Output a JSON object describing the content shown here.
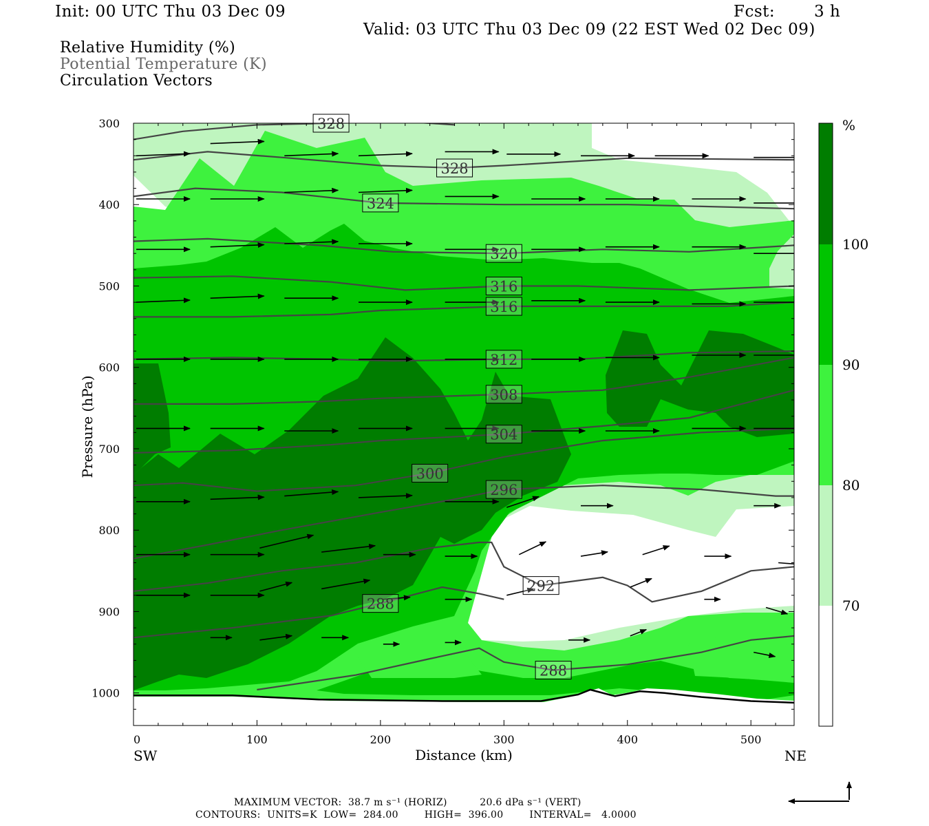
{
  "header": {
    "init": "Init: 00 UTC Thu 03 Dec 09",
    "fcst_label": "Fcst:",
    "fcst_value": "3 h",
    "valid": "Valid: 03 UTC Thu 03 Dec 09 (22 EST Wed 02 Dec 09)"
  },
  "fields": [
    "Relative Humidity (%)",
    "Potential Temperature (K)",
    "Circulation Vectors"
  ],
  "colors": {
    "rh_70_80": "#bff5bf",
    "rh_80_90": "#3ef23e",
    "rh_90_100": "#00c400",
    "rh_100": "#007d00",
    "theta_contour": "#444444",
    "theta_label": "#333333",
    "vector": "#000000",
    "legend_gray": "#666666"
  },
  "colorbar": {
    "unit": "%",
    "labels": [
      "100",
      "90",
      "80",
      "70"
    ]
  },
  "footer": {
    "line1": "MAXIMUM VECTOR:  38.7 m s⁻¹ (HORIZ)          20.6 dPa s⁻¹ (VERT)",
    "line2": "CONTOURS:  UNITS=K  LOW=  284.00        HIGH=  396.00        INTERVAL=   4.0000"
  },
  "chart_data": {
    "type": "heatmap",
    "title": "",
    "xlabel": "Distance (km)",
    "ylabel": "Pressure (hPa)",
    "xlim": [
      0,
      535
    ],
    "ylim": [
      1040,
      300
    ],
    "x_ticks": [
      "0",
      "100",
      "200",
      "300",
      "400",
      "500"
    ],
    "y_ticks": [
      "300",
      "400",
      "500",
      "600",
      "700",
      "800",
      "900",
      "1000"
    ],
    "x_end_labels": {
      "left": "SW",
      "right": "NE"
    },
    "rh_levels": [
      70,
      80,
      90,
      100
    ],
    "theta_contours": [
      {
        "value": 328,
        "label_text": "328",
        "points": [
          [
            0,
            320
          ],
          [
            40,
            310
          ],
          [
            100,
            302
          ],
          [
            160,
            300
          ],
          [
            220,
            298
          ],
          [
            260,
            302
          ]
        ]
      },
      {
        "value": 328,
        "label_text": "328",
        "points": [
          [
            0,
            345
          ],
          [
            60,
            335
          ],
          [
            120,
            342
          ],
          [
            200,
            352
          ],
          [
            260,
            355
          ],
          [
            300,
            352
          ],
          [
            400,
            343
          ],
          [
            535,
            345
          ]
        ]
      },
      {
        "value": 324,
        "label_text": "324",
        "points": [
          [
            0,
            390
          ],
          [
            50,
            380
          ],
          [
            120,
            385
          ],
          [
            200,
            398
          ],
          [
            300,
            400
          ],
          [
            400,
            400
          ],
          [
            535,
            405
          ]
        ]
      },
      {
        "value": 320,
        "label_text": "320",
        "points": [
          [
            0,
            445
          ],
          [
            60,
            442
          ],
          [
            150,
            450
          ],
          [
            210,
            458
          ],
          [
            300,
            460
          ],
          [
            380,
            455
          ],
          [
            450,
            458
          ],
          [
            535,
            450
          ]
        ]
      },
      {
        "value": 316,
        "label_text": "316",
        "points": [
          [
            0,
            490
          ],
          [
            80,
            488
          ],
          [
            160,
            495
          ],
          [
            220,
            505
          ],
          [
            300,
            500
          ],
          [
            360,
            500
          ],
          [
            450,
            505
          ],
          [
            535,
            500
          ]
        ]
      },
      {
        "value": 316,
        "label_text": "316",
        "points": [
          [
            0,
            538
          ],
          [
            80,
            538
          ],
          [
            160,
            535
          ],
          [
            200,
            530
          ],
          [
            300,
            525
          ],
          [
            400,
            525
          ],
          [
            480,
            525
          ],
          [
            535,
            520
          ]
        ]
      },
      {
        "value": 312,
        "label_text": "312",
        "points": [
          [
            0,
            590
          ],
          [
            80,
            588
          ],
          [
            160,
            590
          ],
          [
            210,
            592
          ],
          [
            300,
            590
          ],
          [
            360,
            590
          ],
          [
            450,
            582
          ],
          [
            535,
            580
          ]
        ]
      },
      {
        "value": 308,
        "label_text": "308",
        "points": [
          [
            0,
            645
          ],
          [
            80,
            645
          ],
          [
            150,
            642
          ],
          [
            200,
            638
          ],
          [
            300,
            633
          ],
          [
            380,
            628
          ],
          [
            450,
            612
          ],
          [
            535,
            588
          ]
        ]
      },
      {
        "value": 304,
        "label_text": "304",
        "points": [
          [
            0,
            705
          ],
          [
            80,
            702
          ],
          [
            160,
            695
          ],
          [
            200,
            690
          ],
          [
            300,
            682
          ],
          [
            380,
            672
          ],
          [
            450,
            662
          ],
          [
            535,
            628
          ]
        ]
      },
      {
        "value": 300,
        "label_text": "300",
        "points": [
          [
            0,
            745
          ],
          [
            40,
            742
          ],
          [
            100,
            752
          ],
          [
            180,
            745
          ],
          [
            240,
            730
          ],
          [
            300,
            710
          ],
          [
            380,
            690
          ],
          [
            460,
            680
          ],
          [
            535,
            675
          ]
        ]
      },
      {
        "value": 296,
        "label_text": "296",
        "points": [
          [
            0,
            835
          ],
          [
            60,
            818
          ],
          [
            120,
            800
          ],
          [
            200,
            778
          ],
          [
            260,
            762
          ],
          [
            300,
            750
          ],
          [
            380,
            745
          ],
          [
            460,
            750
          ],
          [
            520,
            758
          ],
          [
            535,
            758
          ]
        ]
      },
      {
        "value": 292,
        "label_text": "292",
        "points": [
          [
            0,
            875
          ],
          [
            60,
            865
          ],
          [
            120,
            850
          ],
          [
            180,
            840
          ],
          [
            240,
            822
          ],
          [
            280,
            815
          ],
          [
            290,
            815
          ],
          [
            300,
            845
          ],
          [
            330,
            868
          ],
          [
            360,
            862
          ],
          [
            380,
            858
          ],
          [
            400,
            868
          ],
          [
            420,
            888
          ],
          [
            460,
            875
          ],
          [
            500,
            850
          ],
          [
            535,
            845
          ]
        ]
      },
      {
        "value": 288,
        "label_text": "288",
        "points": [
          [
            0,
            932
          ],
          [
            80,
            920
          ],
          [
            160,
            905
          ],
          [
            200,
            890
          ],
          [
            250,
            870
          ],
          [
            280,
            878
          ],
          [
            300,
            885
          ]
        ]
      },
      {
        "value": 288,
        "label_text": "288",
        "points": [
          [
            100,
            996
          ],
          [
            180,
            978
          ],
          [
            240,
            958
          ],
          [
            280,
            945
          ],
          [
            300,
            962
          ],
          [
            340,
            972
          ],
          [
            400,
            965
          ],
          [
            460,
            950
          ],
          [
            500,
            935
          ],
          [
            535,
            930
          ]
        ]
      }
    ],
    "vectors": [
      {
        "x": 0,
        "p": 340,
        "u": 1,
        "w": 0.1
      },
      {
        "x": 60,
        "p": 325,
        "u": 1,
        "w": 0.1
      },
      {
        "x": 120,
        "p": 340,
        "u": 1,
        "w": 0.1
      },
      {
        "x": 180,
        "p": 340,
        "u": 1,
        "w": 0.1
      },
      {
        "x": 250,
        "p": 335,
        "u": 1,
        "w": 0
      },
      {
        "x": 300,
        "p": 338,
        "u": 1,
        "w": 0
      },
      {
        "x": 360,
        "p": 340,
        "u": 1,
        "w": 0
      },
      {
        "x": 420,
        "p": 340,
        "u": 1,
        "w": 0
      },
      {
        "x": 500,
        "p": 342,
        "u": 1,
        "w": 0
      },
      {
        "x": 0,
        "p": 393,
        "u": 1,
        "w": 0
      },
      {
        "x": 60,
        "p": 393,
        "u": 1,
        "w": 0
      },
      {
        "x": 120,
        "p": 385,
        "u": 1,
        "w": 0.1
      },
      {
        "x": 180,
        "p": 385,
        "u": 1,
        "w": 0.1
      },
      {
        "x": 250,
        "p": 390,
        "u": 1,
        "w": 0
      },
      {
        "x": 320,
        "p": 393,
        "u": 1,
        "w": 0
      },
      {
        "x": 380,
        "p": 393,
        "u": 1,
        "w": 0
      },
      {
        "x": 450,
        "p": 393,
        "u": 1,
        "w": 0
      },
      {
        "x": 500,
        "p": 398,
        "u": 1,
        "w": 0
      },
      {
        "x": 0,
        "p": 455,
        "u": 1,
        "w": 0
      },
      {
        "x": 60,
        "p": 452,
        "u": 1,
        "w": 0.1
      },
      {
        "x": 120,
        "p": 448,
        "u": 1,
        "w": 0.1
      },
      {
        "x": 180,
        "p": 448,
        "u": 1,
        "w": 0
      },
      {
        "x": 250,
        "p": 455,
        "u": 1,
        "w": 0
      },
      {
        "x": 320,
        "p": 455,
        "u": 1,
        "w": 0
      },
      {
        "x": 380,
        "p": 452,
        "u": 1,
        "w": 0
      },
      {
        "x": 450,
        "p": 452,
        "u": 1,
        "w": 0
      },
      {
        "x": 500,
        "p": 460,
        "u": 1,
        "w": 0
      },
      {
        "x": 0,
        "p": 520,
        "u": 1,
        "w": 0.1
      },
      {
        "x": 60,
        "p": 515,
        "u": 1,
        "w": 0.1
      },
      {
        "x": 120,
        "p": 515,
        "u": 1,
        "w": 0
      },
      {
        "x": 180,
        "p": 520,
        "u": 1,
        "w": 0
      },
      {
        "x": 250,
        "p": 520,
        "u": 1,
        "w": 0
      },
      {
        "x": 320,
        "p": 518,
        "u": 1,
        "w": 0
      },
      {
        "x": 380,
        "p": 520,
        "u": 1,
        "w": 0
      },
      {
        "x": 450,
        "p": 522,
        "u": 1,
        "w": 0
      },
      {
        "x": 500,
        "p": 520,
        "u": 1,
        "w": 0
      },
      {
        "x": 0,
        "p": 590,
        "u": 1,
        "w": 0
      },
      {
        "x": 60,
        "p": 590,
        "u": 1,
        "w": 0
      },
      {
        "x": 120,
        "p": 590,
        "u": 1,
        "w": 0
      },
      {
        "x": 180,
        "p": 590,
        "u": 1,
        "w": 0
      },
      {
        "x": 250,
        "p": 590,
        "u": 1,
        "w": 0
      },
      {
        "x": 320,
        "p": 590,
        "u": 1,
        "w": 0
      },
      {
        "x": 380,
        "p": 588,
        "u": 1,
        "w": 0
      },
      {
        "x": 450,
        "p": 585,
        "u": 1,
        "w": 0
      },
      {
        "x": 500,
        "p": 585,
        "u": 1,
        "w": 0
      },
      {
        "x": 0,
        "p": 675,
        "u": 1,
        "w": 0
      },
      {
        "x": 60,
        "p": 675,
        "u": 1,
        "w": 0
      },
      {
        "x": 120,
        "p": 678,
        "u": 1,
        "w": 0
      },
      {
        "x": 180,
        "p": 675,
        "u": 1,
        "w": 0
      },
      {
        "x": 250,
        "p": 675,
        "u": 1,
        "w": 0
      },
      {
        "x": 320,
        "p": 678,
        "u": 1,
        "w": 0
      },
      {
        "x": 380,
        "p": 678,
        "u": 1,
        "w": 0
      },
      {
        "x": 450,
        "p": 675,
        "u": 1,
        "w": 0
      },
      {
        "x": 500,
        "p": 675,
        "u": 1,
        "w": 0
      },
      {
        "x": 0,
        "p": 765,
        "u": 1,
        "w": 0
      },
      {
        "x": 60,
        "p": 762,
        "u": 1,
        "w": 0.1
      },
      {
        "x": 120,
        "p": 758,
        "u": 1,
        "w": 0.2
      },
      {
        "x": 180,
        "p": 760,
        "u": 1,
        "w": 0.1
      },
      {
        "x": 250,
        "p": 765,
        "u": 1,
        "w": 0
      },
      {
        "x": 300,
        "p": 772,
        "u": 0.6,
        "w": 0.5
      },
      {
        "x": 360,
        "p": 770,
        "u": 0.6,
        "w": 0
      },
      {
        "x": 500,
        "p": 770,
        "u": 0.5,
        "w": 0
      },
      {
        "x": 0,
        "p": 830,
        "u": 1,
        "w": 0
      },
      {
        "x": 60,
        "p": 830,
        "u": 1,
        "w": 0
      },
      {
        "x": 100,
        "p": 822,
        "u": 1,
        "w": 0.6
      },
      {
        "x": 150,
        "p": 827,
        "u": 1,
        "w": 0.3
      },
      {
        "x": 200,
        "p": 830,
        "u": 0.6,
        "w": 0
      },
      {
        "x": 250,
        "p": 832,
        "u": 0.6,
        "w": 0
      },
      {
        "x": 310,
        "p": 830,
        "u": 0.5,
        "w": 0.6
      },
      {
        "x": 360,
        "p": 832,
        "u": 0.5,
        "w": 0.2
      },
      {
        "x": 410,
        "p": 830,
        "u": 0.5,
        "w": 0.4
      },
      {
        "x": 460,
        "p": 832,
        "u": 0.5,
        "w": 0
      },
      {
        "x": 520,
        "p": 840,
        "u": 0.5,
        "w": -0.1
      },
      {
        "x": 0,
        "p": 880,
        "u": 1,
        "w": 0
      },
      {
        "x": 60,
        "p": 880,
        "u": 1,
        "w": 0
      },
      {
        "x": 100,
        "p": 875,
        "u": 0.6,
        "w": 0.4
      },
      {
        "x": 150,
        "p": 872,
        "u": 0.9,
        "w": 0.4
      },
      {
        "x": 200,
        "p": 885,
        "u": 0.5,
        "w": 0.1
      },
      {
        "x": 250,
        "p": 885,
        "u": 0.5,
        "w": 0
      },
      {
        "x": 300,
        "p": 880,
        "u": 0.5,
        "w": 0.3
      },
      {
        "x": 400,
        "p": 870,
        "u": 0.4,
        "w": 0.4
      },
      {
        "x": 460,
        "p": 885,
        "u": 0.3,
        "w": 0
      },
      {
        "x": 510,
        "p": 895,
        "u": 0.4,
        "w": -0.3
      },
      {
        "x": 60,
        "p": 932,
        "u": 0.4,
        "w": 0
      },
      {
        "x": 100,
        "p": 935,
        "u": 0.6,
        "w": 0.2
      },
      {
        "x": 150,
        "p": 932,
        "u": 0.5,
        "w": 0
      },
      {
        "x": 200,
        "p": 940,
        "u": 0.3,
        "w": 0
      },
      {
        "x": 250,
        "p": 938,
        "u": 0.3,
        "w": 0
      },
      {
        "x": 350,
        "p": 935,
        "u": 0.4,
        "w": 0
      },
      {
        "x": 400,
        "p": 930,
        "u": 0.3,
        "w": 0.3
      },
      {
        "x": 500,
        "p": 950,
        "u": 0.4,
        "w": -0.2
      }
    ],
    "ground_pressure_hpa": [
      [
        0,
        1003
      ],
      [
        80,
        1003
      ],
      [
        150,
        1008
      ],
      [
        250,
        1010
      ],
      [
        330,
        1010
      ],
      [
        360,
        1002
      ],
      [
        370,
        996
      ],
      [
        390,
        1004
      ],
      [
        410,
        998
      ],
      [
        430,
        1000
      ],
      [
        460,
        1005
      ],
      [
        500,
        1010
      ],
      [
        535,
        1012
      ]
    ],
    "max_vector_horiz": "38.7 m s⁻¹",
    "max_vector_vert": "20.6 dPa s⁻¹",
    "contour_units": "K",
    "contour_low": 284.0,
    "contour_high": 396.0,
    "contour_interval": 4.0
  }
}
